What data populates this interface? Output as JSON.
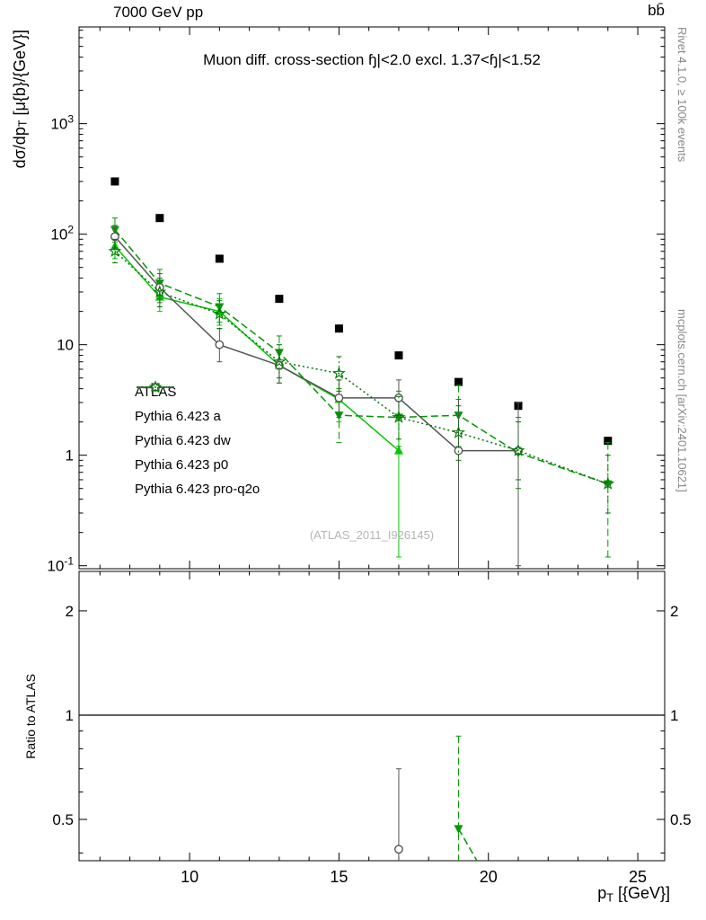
{
  "chart_data": {
    "type": "line",
    "title": "Muon diff. cross-section ɧ|<2.0 excl. 1.37<ɧ|<1.52",
    "header_left": "7000 GeV pp",
    "header_right": "bb̄",
    "watermark": "(ATLAS_2011_I926145)",
    "rivet_credit": "Rivet 4.1.0, ≥ 100k events",
    "mcplots_credit": "mcplots.cern.ch [arXiv:2401.10621]",
    "ylabel": {
      "pre": "dσ/dp",
      "sub": "T",
      "post": " [μ{b}/{GeV}]"
    },
    "xlabel": {
      "pre": "p",
      "sub": "T",
      "post": " [{GeV}]"
    },
    "ratio_ylabel": "Ratio to ATLAS",
    "xlim": [
      6.3,
      25.9
    ],
    "ylim_main": [
      0.094,
      7500
    ],
    "ylim_ratio": [
      0.38,
      2.6
    ],
    "x_major_ticks": [
      10,
      15,
      20,
      25
    ],
    "y_major_ticks_main": [
      0.1,
      1,
      10,
      100,
      1000
    ],
    "ratio_major_ticks": [
      0.5,
      1,
      2
    ],
    "ratio_minor_ticks": [
      0.4,
      0.6,
      0.7,
      0.8,
      0.9
    ],
    "ratio_reference": 1,
    "series": [
      {
        "name": "ATLAS",
        "color": "#000000",
        "line": "none",
        "marker": "square-filled",
        "x": [
          7.5,
          9,
          11,
          13,
          15,
          17,
          19,
          21,
          24
        ],
        "y": [
          300,
          140,
          60,
          26,
          14,
          8,
          4.6,
          2.8,
          1.35
        ],
        "err_lo": null,
        "err_hi": null,
        "ratio": null
      },
      {
        "name": "Pythia 6.423 a",
        "color": "#00c800",
        "line": "solid",
        "marker": "triangle-up-filled",
        "x": [
          7.5,
          9,
          11,
          13,
          15,
          17
        ],
        "y": [
          78,
          27,
          20,
          6.5,
          3.2,
          1.1
        ],
        "err_lo": [
          60,
          20,
          15,
          4.5,
          2.0,
          0.12
        ],
        "err_hi": [
          100,
          35,
          26,
          9,
          4.8,
          2.3
        ],
        "ratio": null
      },
      {
        "name": "Pythia 6.423 dw",
        "color": "#009900",
        "line": "dashed",
        "marker": "triangle-down-filled",
        "x": [
          7.5,
          9,
          11,
          13,
          15,
          17,
          19,
          21,
          24
        ],
        "y": [
          110,
          36,
          22,
          8.5,
          2.3,
          2.2,
          2.3,
          1.05,
          0.55
        ],
        "err_lo": [
          85,
          26,
          16,
          6,
          1.3,
          1.2,
          1.2,
          0.5,
          0.12
        ],
        "err_hi": [
          140,
          48,
          29,
          12,
          4,
          3.8,
          4.3,
          2.2,
          1.3
        ],
        "ratio": {
          "x": [
            19
          ],
          "y": [
            0.47
          ],
          "err_lo": [
            0.25
          ],
          "err_hi": [
            0.87
          ],
          "line_x": [
            19,
            20.3
          ],
          "line_y": [
            0.47,
            0.3
          ]
        }
      },
      {
        "name": "Pythia 6.423 p0",
        "color": "#555555",
        "line": "solid",
        "marker": "circle-open",
        "x": [
          7.5,
          9,
          11,
          13,
          15,
          17,
          19,
          21
        ],
        "y": [
          95,
          33,
          10,
          6.5,
          3.3,
          3.3,
          1.1,
          1.1
        ],
        "err_lo": [
          75,
          24,
          7,
          4.5,
          2.2,
          2.2,
          0.07,
          0.1
        ],
        "err_hi": [
          120,
          44,
          14,
          9,
          4.8,
          4.8,
          3.2,
          3.0
        ],
        "ratio": {
          "x": [
            17
          ],
          "y": [
            0.41
          ],
          "err_lo": [
            0.25
          ],
          "err_hi": [
            0.7
          ],
          "line_x": [],
          "line_y": []
        }
      },
      {
        "name": "Pythia 6.423 pro-q2o",
        "color": "#007700",
        "line": "dotted",
        "marker": "star-open",
        "x": [
          7.5,
          9,
          11,
          13,
          15,
          17,
          19,
          21,
          24
        ],
        "y": [
          70,
          30,
          19,
          7,
          5.5,
          2.2,
          1.6,
          1.1,
          0.55
        ],
        "err_lo": [
          55,
          22,
          14,
          5,
          3.8,
          1.4,
          0.9,
          0.6,
          0.3
        ],
        "err_hi": [
          90,
          40,
          25,
          10,
          7.8,
          3.4,
          2.8,
          2.0,
          1.0
        ],
        "ratio": null
      }
    ]
  }
}
